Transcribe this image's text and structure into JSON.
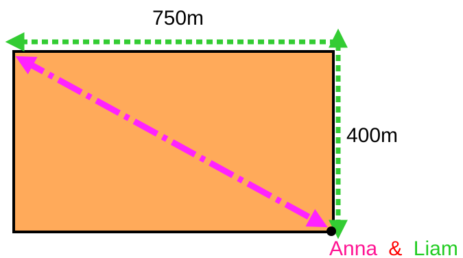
{
  "labels": {
    "width": "750m",
    "height": "400m"
  },
  "people": [
    {
      "name": "Anna",
      "color": "#ff1493",
      "path": "diagonal"
    },
    {
      "name": "Liam",
      "color": "#22cc22",
      "path": "along the edges"
    }
  ],
  "ampersand": {
    "text": "&",
    "color": "#ff0000"
  },
  "colors": {
    "field": "#ffaa5a",
    "outline": "#000000",
    "anna_path": "#ff22ff",
    "liam_path": "#33cc33"
  }
}
